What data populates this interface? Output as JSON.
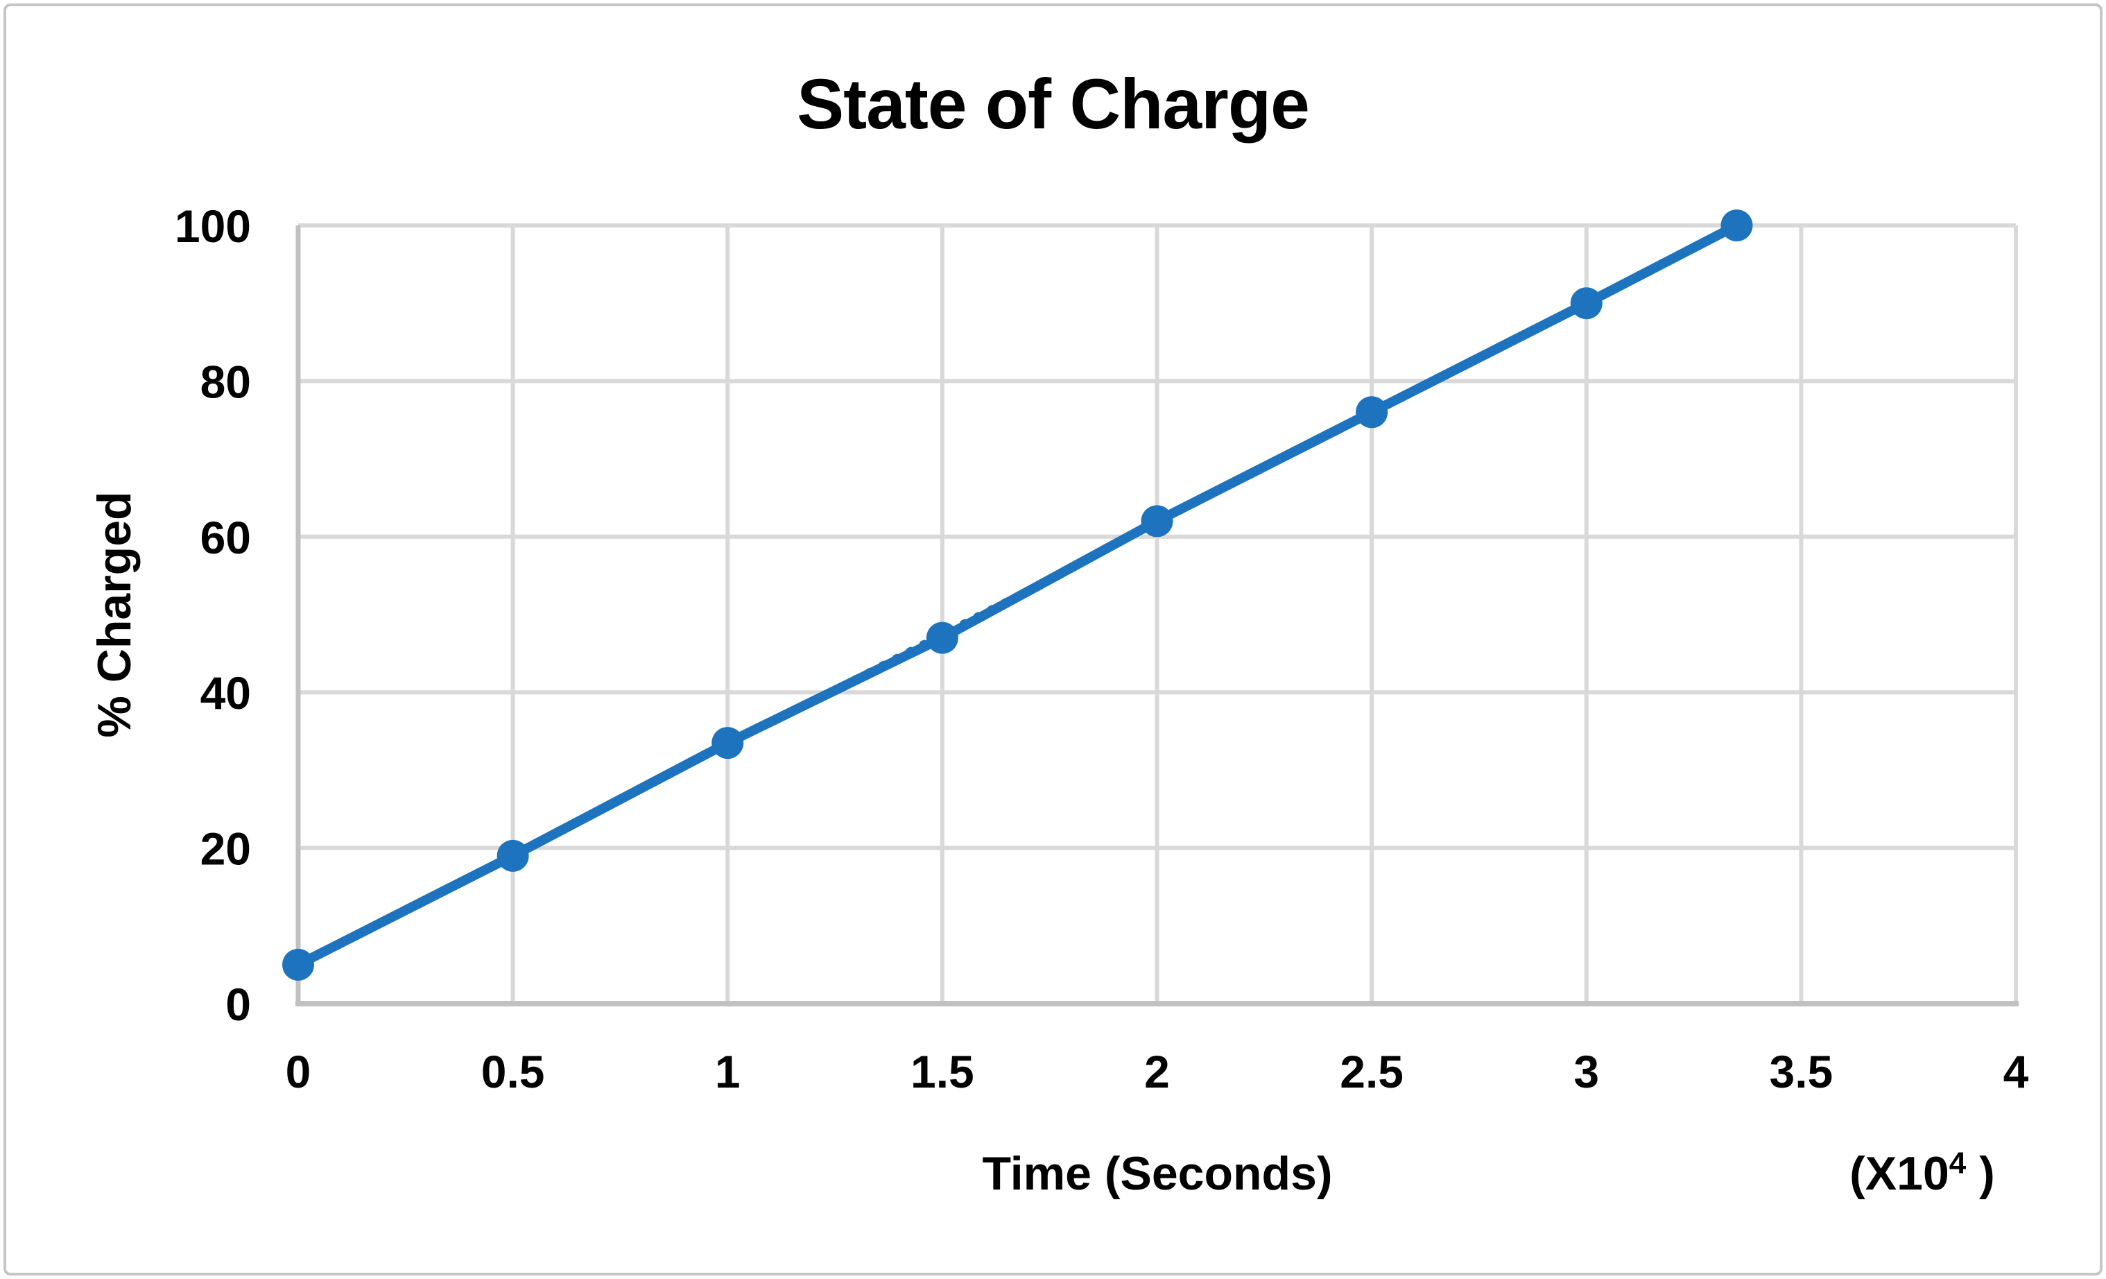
{
  "chart_data": {
    "type": "line",
    "title": "State of Charge",
    "xlabel": "Time (Seconds)",
    "ylabel": "% Charged",
    "x_multiplier": {
      "prefix": "(X10",
      "sup": "4",
      "suffix": " )"
    },
    "xlim": [
      0,
      4
    ],
    "ylim": [
      0,
      100
    ],
    "x_ticks": [
      0,
      0.5,
      1,
      1.5,
      2,
      2.5,
      3,
      3.5,
      4
    ],
    "x_tick_labels": [
      "0",
      "0.5",
      "1",
      "1.5",
      "2",
      "2.5",
      "3",
      "3.5",
      "4"
    ],
    "y_ticks": [
      0,
      20,
      40,
      60,
      80,
      100
    ],
    "y_tick_labels": [
      "0",
      "20",
      "40",
      "60",
      "80",
      "100"
    ],
    "grid": true,
    "legend_position": "none",
    "series": [
      {
        "name": "State of Charge",
        "x": [
          0,
          0.5,
          1,
          1.5,
          2,
          2.5,
          3,
          3.35
        ],
        "y": [
          5,
          19,
          33.5,
          47,
          62,
          76,
          90,
          100
        ],
        "color": "#1e73be",
        "marker": "circle",
        "line_style": "solid"
      }
    ],
    "trendline": {
      "style": "dotted",
      "color": "#1e73be",
      "x": [
        0,
        3.35
      ],
      "y": [
        5,
        100
      ]
    }
  },
  "colors": {
    "background": "#ffffff",
    "border": "#c6c6c6",
    "gridline": "#d9d9d9",
    "axis_line": "#c1c1c1",
    "text": "#000000",
    "series_blue": "#1e73be"
  }
}
